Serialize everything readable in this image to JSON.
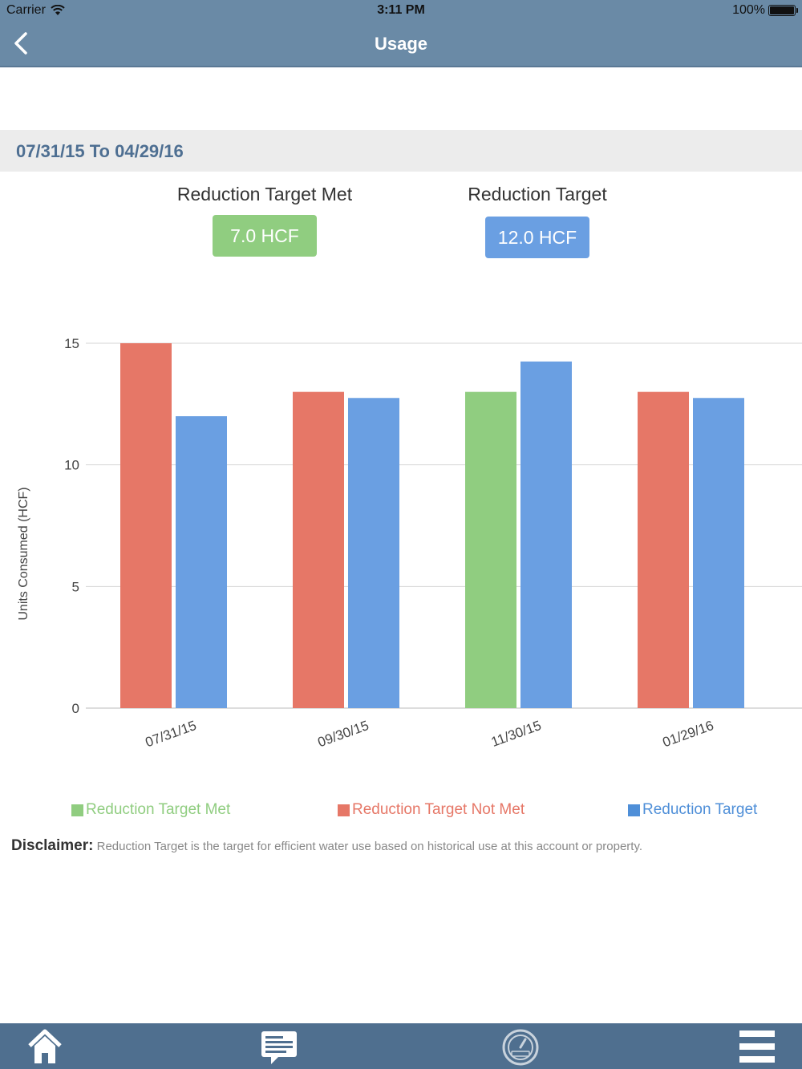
{
  "status_bar": {
    "carrier": "Carrier",
    "time": "3:11 PM",
    "battery": "100%"
  },
  "header": {
    "title": "Usage"
  },
  "date_range": "07/31/15 To 04/29/16",
  "summary": {
    "met": {
      "label": "Reduction Target Met",
      "value": "7.0 HCF"
    },
    "target": {
      "label": "Reduction Target",
      "value": "12.0 HCF"
    }
  },
  "colors": {
    "met": "#90cd80",
    "not_met": "#e67767",
    "target": "#6a9fe2"
  },
  "chart_data": {
    "type": "bar",
    "ylabel": "Units Consumed (HCF)",
    "ylim": [
      0,
      15
    ],
    "yticks": [
      "0",
      "5",
      "10",
      "15"
    ],
    "categories": [
      "07/31/15",
      "09/30/15",
      "11/30/15",
      "01/29/16"
    ],
    "usage": [
      {
        "value": 15,
        "status": "not_met"
      },
      {
        "value": 13,
        "status": "not_met"
      },
      {
        "value": 13,
        "status": "met"
      },
      {
        "value": 13,
        "status": "not_met"
      }
    ],
    "target": [
      12,
      12.75,
      14.25,
      12.75
    ],
    "grid": true,
    "legend": [
      "Reduction Target Met",
      "Reduction Target Not Met",
      "Reduction Target"
    ],
    "legend_position": "bottom"
  },
  "disclaimer": {
    "label": "Disclaimer:",
    "text": "Reduction Target is the target for efficient water use based on historical use at this account or property."
  },
  "tab_bar": {
    "items": [
      {
        "icon": "home-icon"
      },
      {
        "icon": "messages-icon"
      },
      {
        "icon": "meter-gauge-icon"
      },
      {
        "icon": "menu-icon"
      }
    ]
  }
}
